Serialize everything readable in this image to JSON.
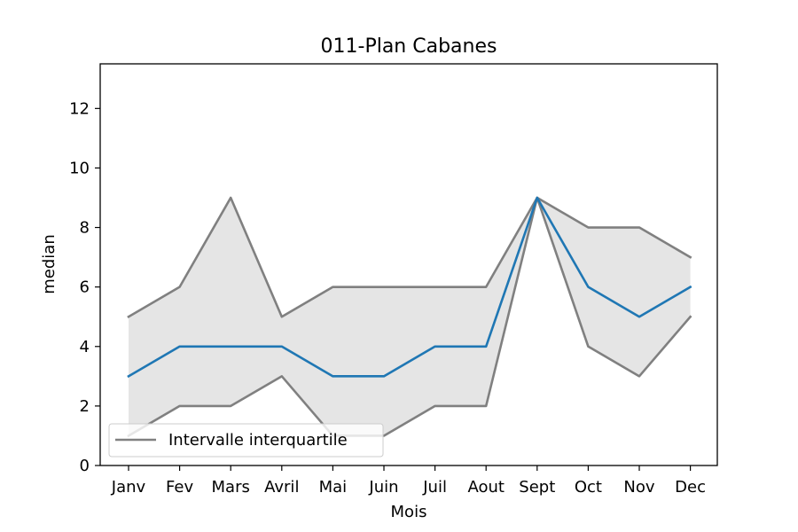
{
  "chart_data": {
    "type": "line",
    "title": "011-Plan Cabanes",
    "xlabel": "Mois",
    "ylabel": "median",
    "categories": [
      "Janv",
      "Fev",
      "Mars",
      "Avril",
      "Mai",
      "Juin",
      "Juil",
      "Aout",
      "Sept",
      "Oct",
      "Nov",
      "Dec"
    ],
    "series": [
      {
        "role": "median",
        "values": [
          3,
          4,
          4,
          4,
          3,
          3,
          4,
          4,
          9,
          6,
          5,
          6
        ],
        "color": "#1f77b4"
      },
      {
        "role": "upper_quartile",
        "values": [
          5,
          6,
          9,
          5,
          6,
          6,
          6,
          6,
          9,
          8,
          8,
          7
        ],
        "color": "#808080"
      },
      {
        "role": "lower_quartile",
        "values": [
          1,
          2,
          2,
          3,
          1,
          1,
          2,
          2,
          9,
          4,
          3,
          5
        ],
        "color": "#808080"
      }
    ],
    "band": {
      "color": "#e5e5e5"
    },
    "legend": {
      "entries": [
        {
          "label": "Intervalle interquartile",
          "color": "#808080"
        }
      ],
      "placement": "lower-left"
    },
    "ylim": [
      0,
      13.5
    ],
    "yticks": [
      0,
      2,
      4,
      6,
      8,
      10,
      12
    ],
    "grid": false
  }
}
